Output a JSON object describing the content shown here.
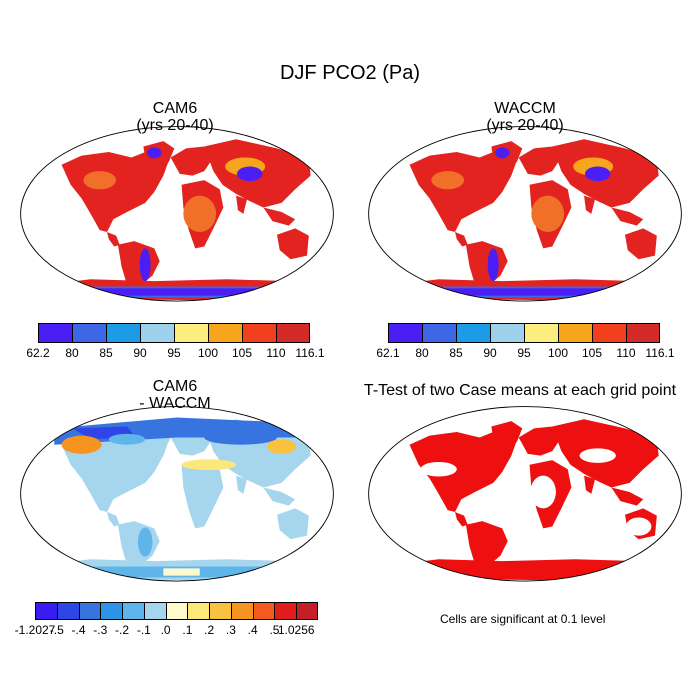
{
  "figure": {
    "title": "DJF PCO2 (Pa)",
    "panels": [
      {
        "id": "cam6",
        "title": "CAM6",
        "subtitle": "(yrs 20-40)"
      },
      {
        "id": "waccm",
        "title": "WACCM",
        "subtitle": "(yrs 20-40)"
      },
      {
        "id": "diff",
        "title": "CAM6",
        "subtitle": "- WACCM"
      },
      {
        "id": "ttest",
        "title": "T-Test of two Case means at each grid point",
        "subtitle": ""
      }
    ],
    "colorbars": {
      "cam6": {
        "labels": [
          "62.2",
          "80",
          "85",
          "90",
          "95",
          "100",
          "105",
          "110",
          "116.1"
        ],
        "colors": [
          "#4a1ef5",
          "#3d67e6",
          "#1e9be6",
          "#9ed1eb",
          "#fbee7f",
          "#f8a51e",
          "#f2401e",
          "#d42a28"
        ]
      },
      "waccm": {
        "labels": [
          "62.1",
          "80",
          "85",
          "90",
          "95",
          "100",
          "105",
          "110",
          "116.1"
        ],
        "colors": [
          "#4a1ef5",
          "#3d67e6",
          "#1e9be6",
          "#9ed1eb",
          "#fbee7f",
          "#f8a51e",
          "#f2401e",
          "#d42a28"
        ]
      },
      "diff": {
        "labels": [
          "-1.2027",
          "-.5",
          "-.4",
          "-.3",
          "-.2",
          "-.1",
          ".0",
          ".1",
          ".2",
          ".3",
          ".4",
          ".5",
          "1.0256"
        ],
        "colors": [
          "#3a1cf3",
          "#2f46e6",
          "#3774e0",
          "#2e95e6",
          "#5fb5ea",
          "#a6d6ed",
          "#fdfbce",
          "#fbe77a",
          "#f9c23e",
          "#f69420",
          "#f25a1e",
          "#e11c1c",
          "#c41e26"
        ]
      }
    },
    "note": "Cells are significant at 0.1 level",
    "colors": {
      "land_hi": "#e3231f",
      "land_warm": "#f0702a",
      "low_blue": "#4a1ef5",
      "diff_base": "#a6d6ed",
      "sig_red": "#ee1010"
    }
  }
}
